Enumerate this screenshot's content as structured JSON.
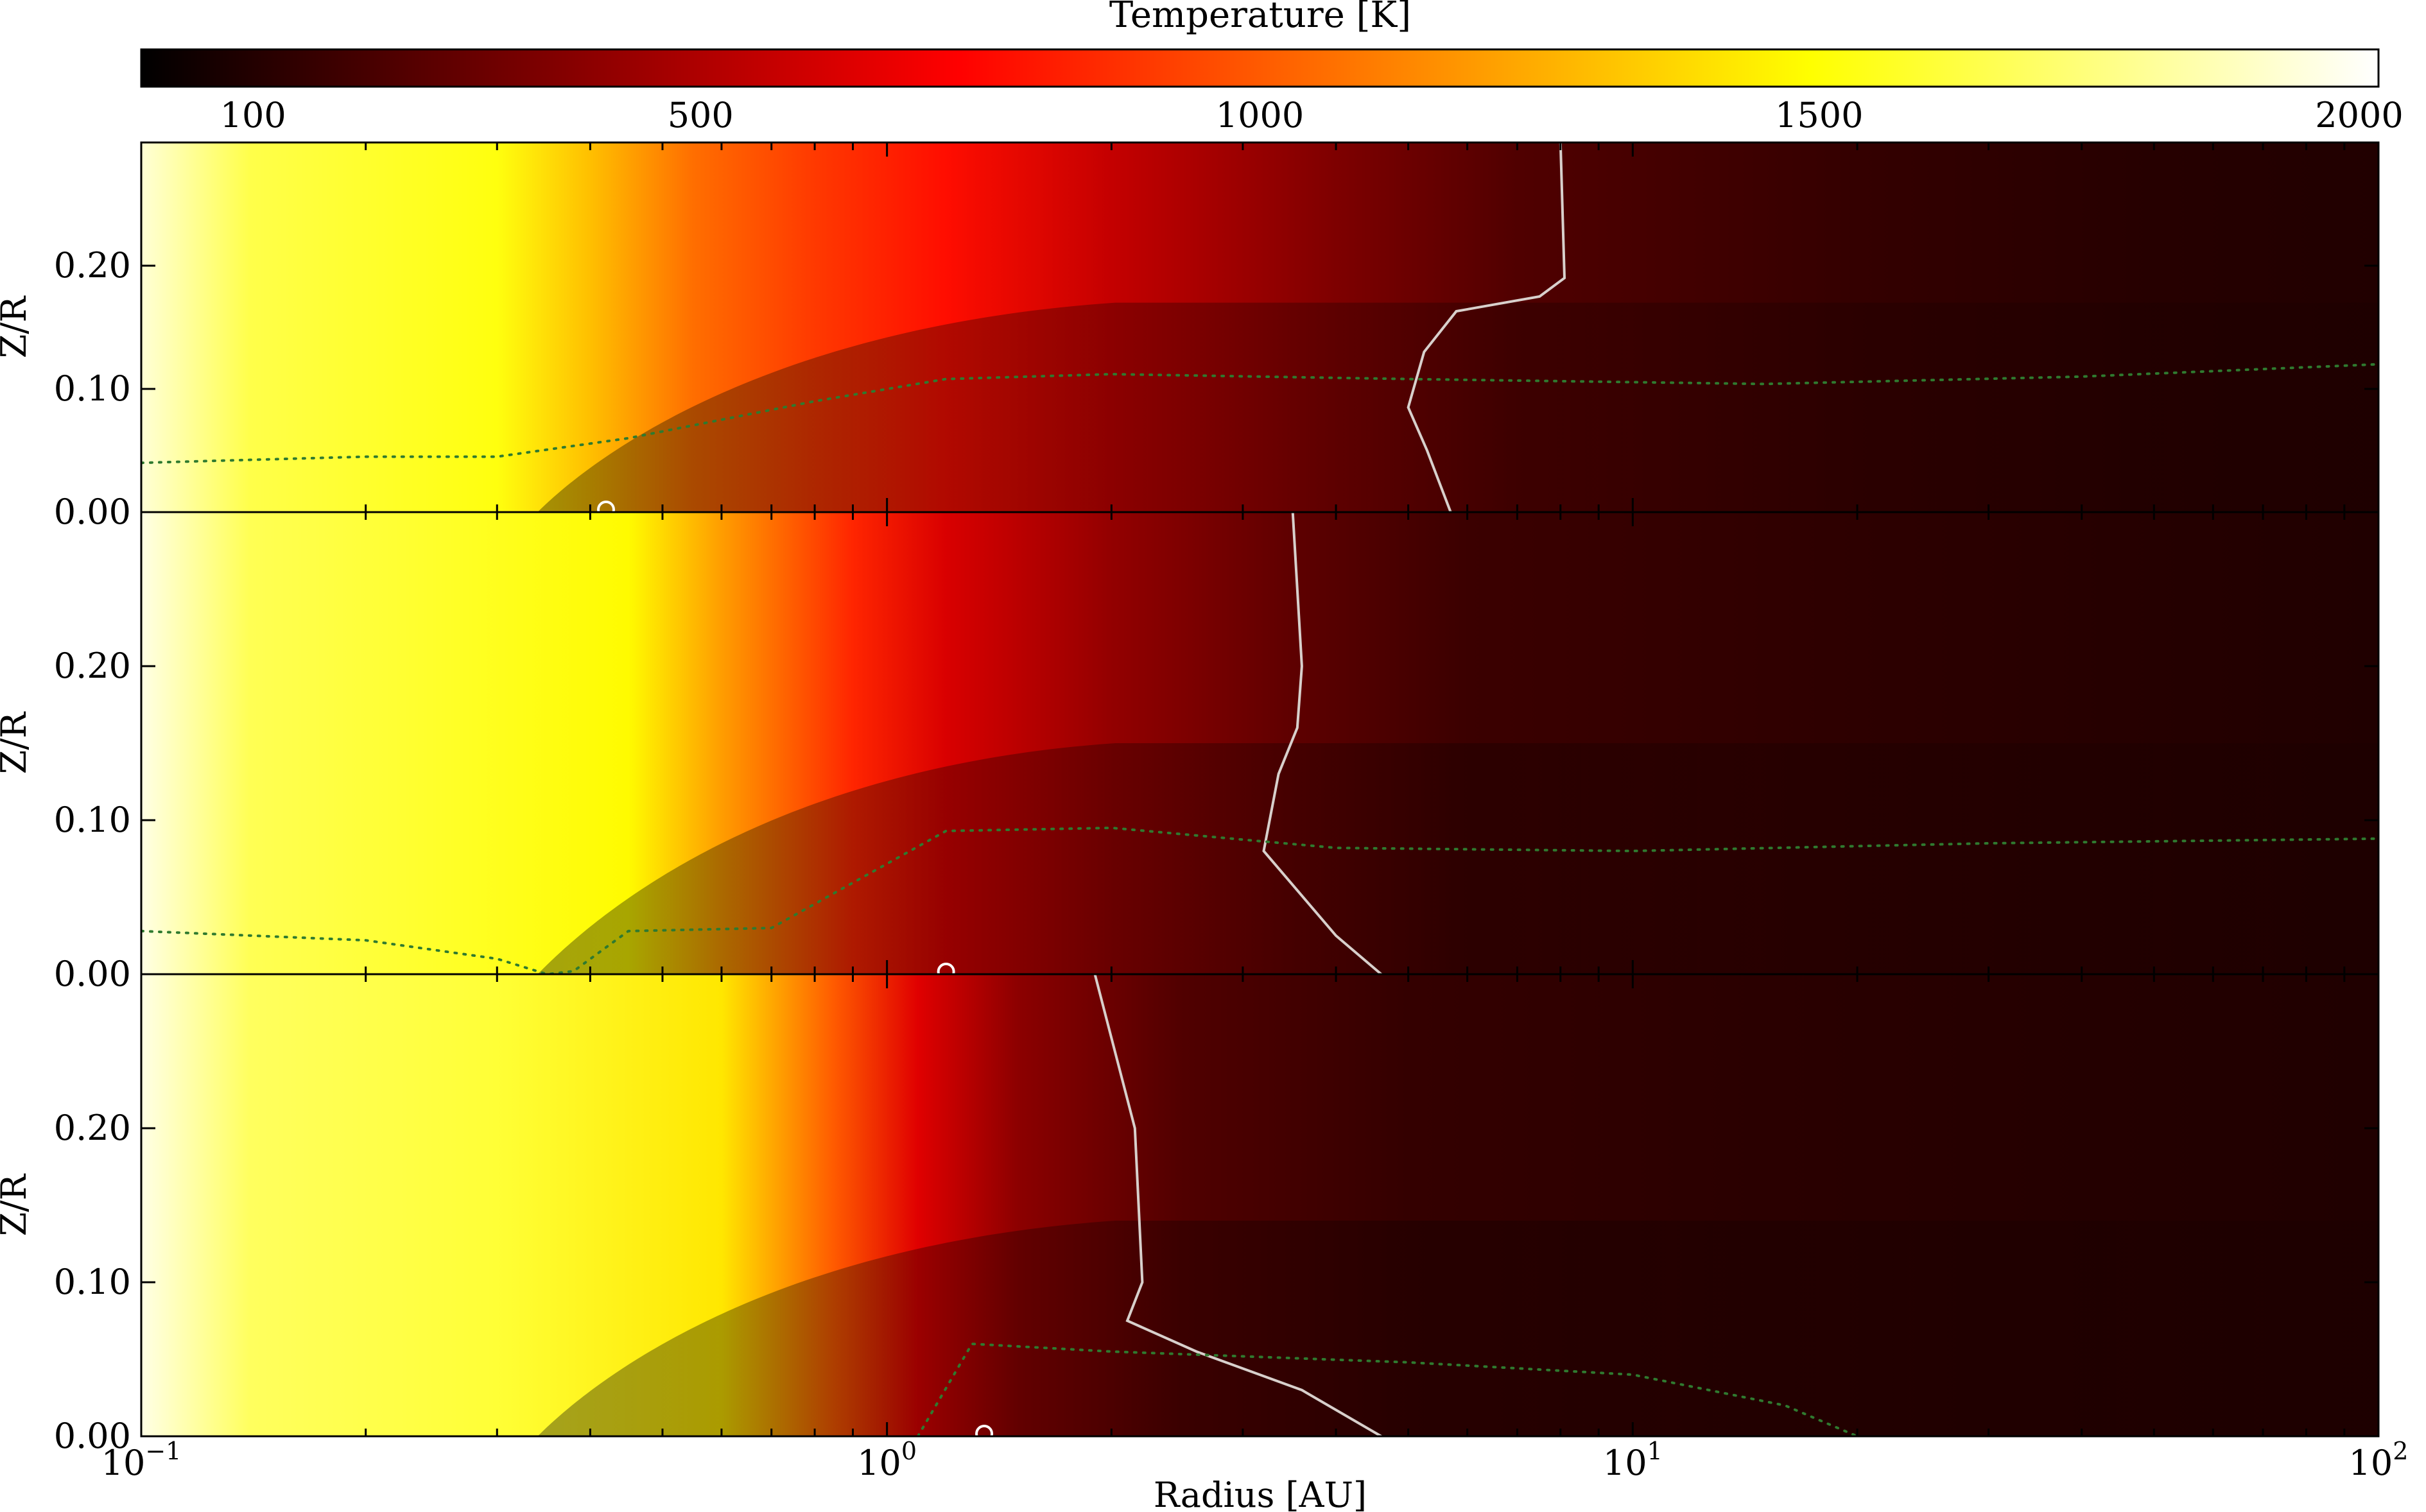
{
  "chart_data": {
    "type": "heatmap",
    "colorbar": {
      "title": "Temperature [K]",
      "colormap": "hot",
      "range": [
        0,
        2000
      ],
      "ticks": [
        100,
        500,
        1000,
        1500,
        2000
      ],
      "tick_labels": [
        "100",
        "500",
        "1000",
        "1500",
        "2000"
      ],
      "placement": "top"
    },
    "xaxis": {
      "label": "Radius [AU]",
      "scale": "log",
      "range": [
        0.1,
        100
      ],
      "ticks": [
        0.1,
        1,
        10,
        100
      ],
      "tick_labels": [
        {
          "base": "10",
          "exp": "−1"
        },
        {
          "base": "10",
          "exp": "0"
        },
        {
          "base": "10",
          "exp": "1"
        },
        {
          "base": "10",
          "exp": "2"
        }
      ]
    },
    "yaxis": {
      "label": "Z/R",
      "range": [
        0,
        0.3
      ],
      "ticks": [
        0,
        0.1,
        0.2
      ],
      "tick_labels": [
        "0.00",
        "0.10",
        "0.20"
      ]
    },
    "panels": [
      {
        "name": "panel-1",
        "temperature_profile": [
          {
            "r": 0.1,
            "T": 1920
          },
          {
            "r": 0.14,
            "T": 1640
          },
          {
            "r": 0.3,
            "T": 1520
          },
          {
            "r": 0.4,
            "T": 1300
          },
          {
            "r": 0.55,
            "T": 1060
          },
          {
            "r": 0.8,
            "T": 900
          },
          {
            "r": 1.2,
            "T": 770
          },
          {
            "r": 2,
            "T": 560
          },
          {
            "r": 4,
            "T": 360
          },
          {
            "r": 7,
            "T": 230
          },
          {
            "r": 20,
            "T": 150
          },
          {
            "r": 50,
            "T": 110
          },
          {
            "r": 100,
            "T": 95
          }
        ],
        "midplane_hot_edge": 0.34,
        "shadow_zone": {
          "start": 0.34,
          "end": 100,
          "height_at_start": 0.0,
          "height_far": 0.17
        },
        "white_contour": [
          {
            "r": 5.7,
            "z": 0.0
          },
          {
            "r": 5.3,
            "z": 0.05
          },
          {
            "r": 5.0,
            "z": 0.085
          },
          {
            "r": 5.25,
            "z": 0.13
          },
          {
            "r": 5.8,
            "z": 0.163
          },
          {
            "r": 7.5,
            "z": 0.175
          },
          {
            "r": 8.1,
            "z": 0.19
          },
          {
            "r": 8.0,
            "z": 0.3
          }
        ],
        "green_dotted": [
          {
            "r": 0.1,
            "z": 0.04
          },
          {
            "r": 0.2,
            "z": 0.045
          },
          {
            "r": 0.3,
            "z": 0.045
          },
          {
            "r": 0.45,
            "z": 0.06
          },
          {
            "r": 0.8,
            "z": 0.09
          },
          {
            "r": 1.2,
            "z": 0.108
          },
          {
            "r": 2,
            "z": 0.112
          },
          {
            "r": 5,
            "z": 0.108
          },
          {
            "r": 15,
            "z": 0.104
          },
          {
            "r": 40,
            "z": 0.11
          },
          {
            "r": 100,
            "z": 0.12
          }
        ],
        "midplane_marker_r": 0.42
      },
      {
        "name": "panel-2",
        "temperature_profile": [
          {
            "r": 0.1,
            "T": 1950
          },
          {
            "r": 0.14,
            "T": 1660
          },
          {
            "r": 0.28,
            "T": 1560
          },
          {
            "r": 0.45,
            "T": 1480
          },
          {
            "r": 0.6,
            "T": 1200
          },
          {
            "r": 0.9,
            "T": 840
          },
          {
            "r": 1.2,
            "T": 620
          },
          {
            "r": 2,
            "T": 420
          },
          {
            "r": 3.5,
            "T": 270
          },
          {
            "r": 6,
            "T": 170
          },
          {
            "r": 20,
            "T": 130
          },
          {
            "r": 50,
            "T": 105
          },
          {
            "r": 100,
            "T": 92
          }
        ],
        "midplane_hot_edge": 0.34,
        "shadow_zone": {
          "start": 0.34,
          "end": 100,
          "height_at_start": 0.0,
          "height_far": 0.15
        },
        "white_contour": [
          {
            "r": 4.6,
            "z": 0.0
          },
          {
            "r": 4.0,
            "z": 0.025
          },
          {
            "r": 3.2,
            "z": 0.08
          },
          {
            "r": 3.35,
            "z": 0.13
          },
          {
            "r": 3.55,
            "z": 0.16
          },
          {
            "r": 3.6,
            "z": 0.2
          },
          {
            "r": 3.5,
            "z": 0.3
          }
        ],
        "green_dotted": [
          {
            "r": 0.1,
            "z": 0.028
          },
          {
            "r": 0.2,
            "z": 0.022
          },
          {
            "r": 0.3,
            "z": 0.01
          },
          {
            "r": 0.35,
            "z": 0.0
          },
          {
            "r": 0.38,
            "z": 0.002
          },
          {
            "r": 0.45,
            "z": 0.028
          },
          {
            "r": 0.7,
            "z": 0.03
          },
          {
            "r": 1.2,
            "z": 0.093
          },
          {
            "r": 2,
            "z": 0.095
          },
          {
            "r": 4,
            "z": 0.082
          },
          {
            "r": 10,
            "z": 0.08
          },
          {
            "r": 30,
            "z": 0.085
          },
          {
            "r": 100,
            "z": 0.088
          }
        ],
        "midplane_marker_r": 1.2
      },
      {
        "name": "panel-3",
        "temperature_profile": [
          {
            "r": 0.1,
            "T": 1950
          },
          {
            "r": 0.14,
            "T": 1680
          },
          {
            "r": 0.3,
            "T": 1600
          },
          {
            "r": 0.6,
            "T": 1420
          },
          {
            "r": 0.85,
            "T": 1000
          },
          {
            "r": 1.1,
            "T": 640
          },
          {
            "r": 1.5,
            "T": 400
          },
          {
            "r": 2.5,
            "T": 230
          },
          {
            "r": 5,
            "T": 150
          },
          {
            "r": 15,
            "T": 120
          },
          {
            "r": 50,
            "T": 100
          },
          {
            "r": 100,
            "T": 92
          }
        ],
        "midplane_hot_edge": 0.34,
        "shadow_zone": {
          "start": 0.34,
          "end": 100,
          "height_at_start": 0.0,
          "height_far": 0.14
        },
        "white_contour": [
          {
            "r": 4.6,
            "z": 0.0
          },
          {
            "r": 3.6,
            "z": 0.03
          },
          {
            "r": 2.6,
            "z": 0.055
          },
          {
            "r": 2.1,
            "z": 0.075
          },
          {
            "r": 2.2,
            "z": 0.1
          },
          {
            "r": 2.15,
            "z": 0.2
          },
          {
            "r": 1.9,
            "z": 0.3
          }
        ],
        "green_dotted": [
          {
            "r": 1.1,
            "z": 0.0
          },
          {
            "r": 1.3,
            "z": 0.06
          },
          {
            "r": 2,
            "z": 0.055
          },
          {
            "r": 5,
            "z": 0.048
          },
          {
            "r": 10,
            "z": 0.04
          },
          {
            "r": 16,
            "z": 0.02
          },
          {
            "r": 20,
            "z": 0.0
          }
        ],
        "midplane_marker_r": 1.35
      }
    ]
  }
}
